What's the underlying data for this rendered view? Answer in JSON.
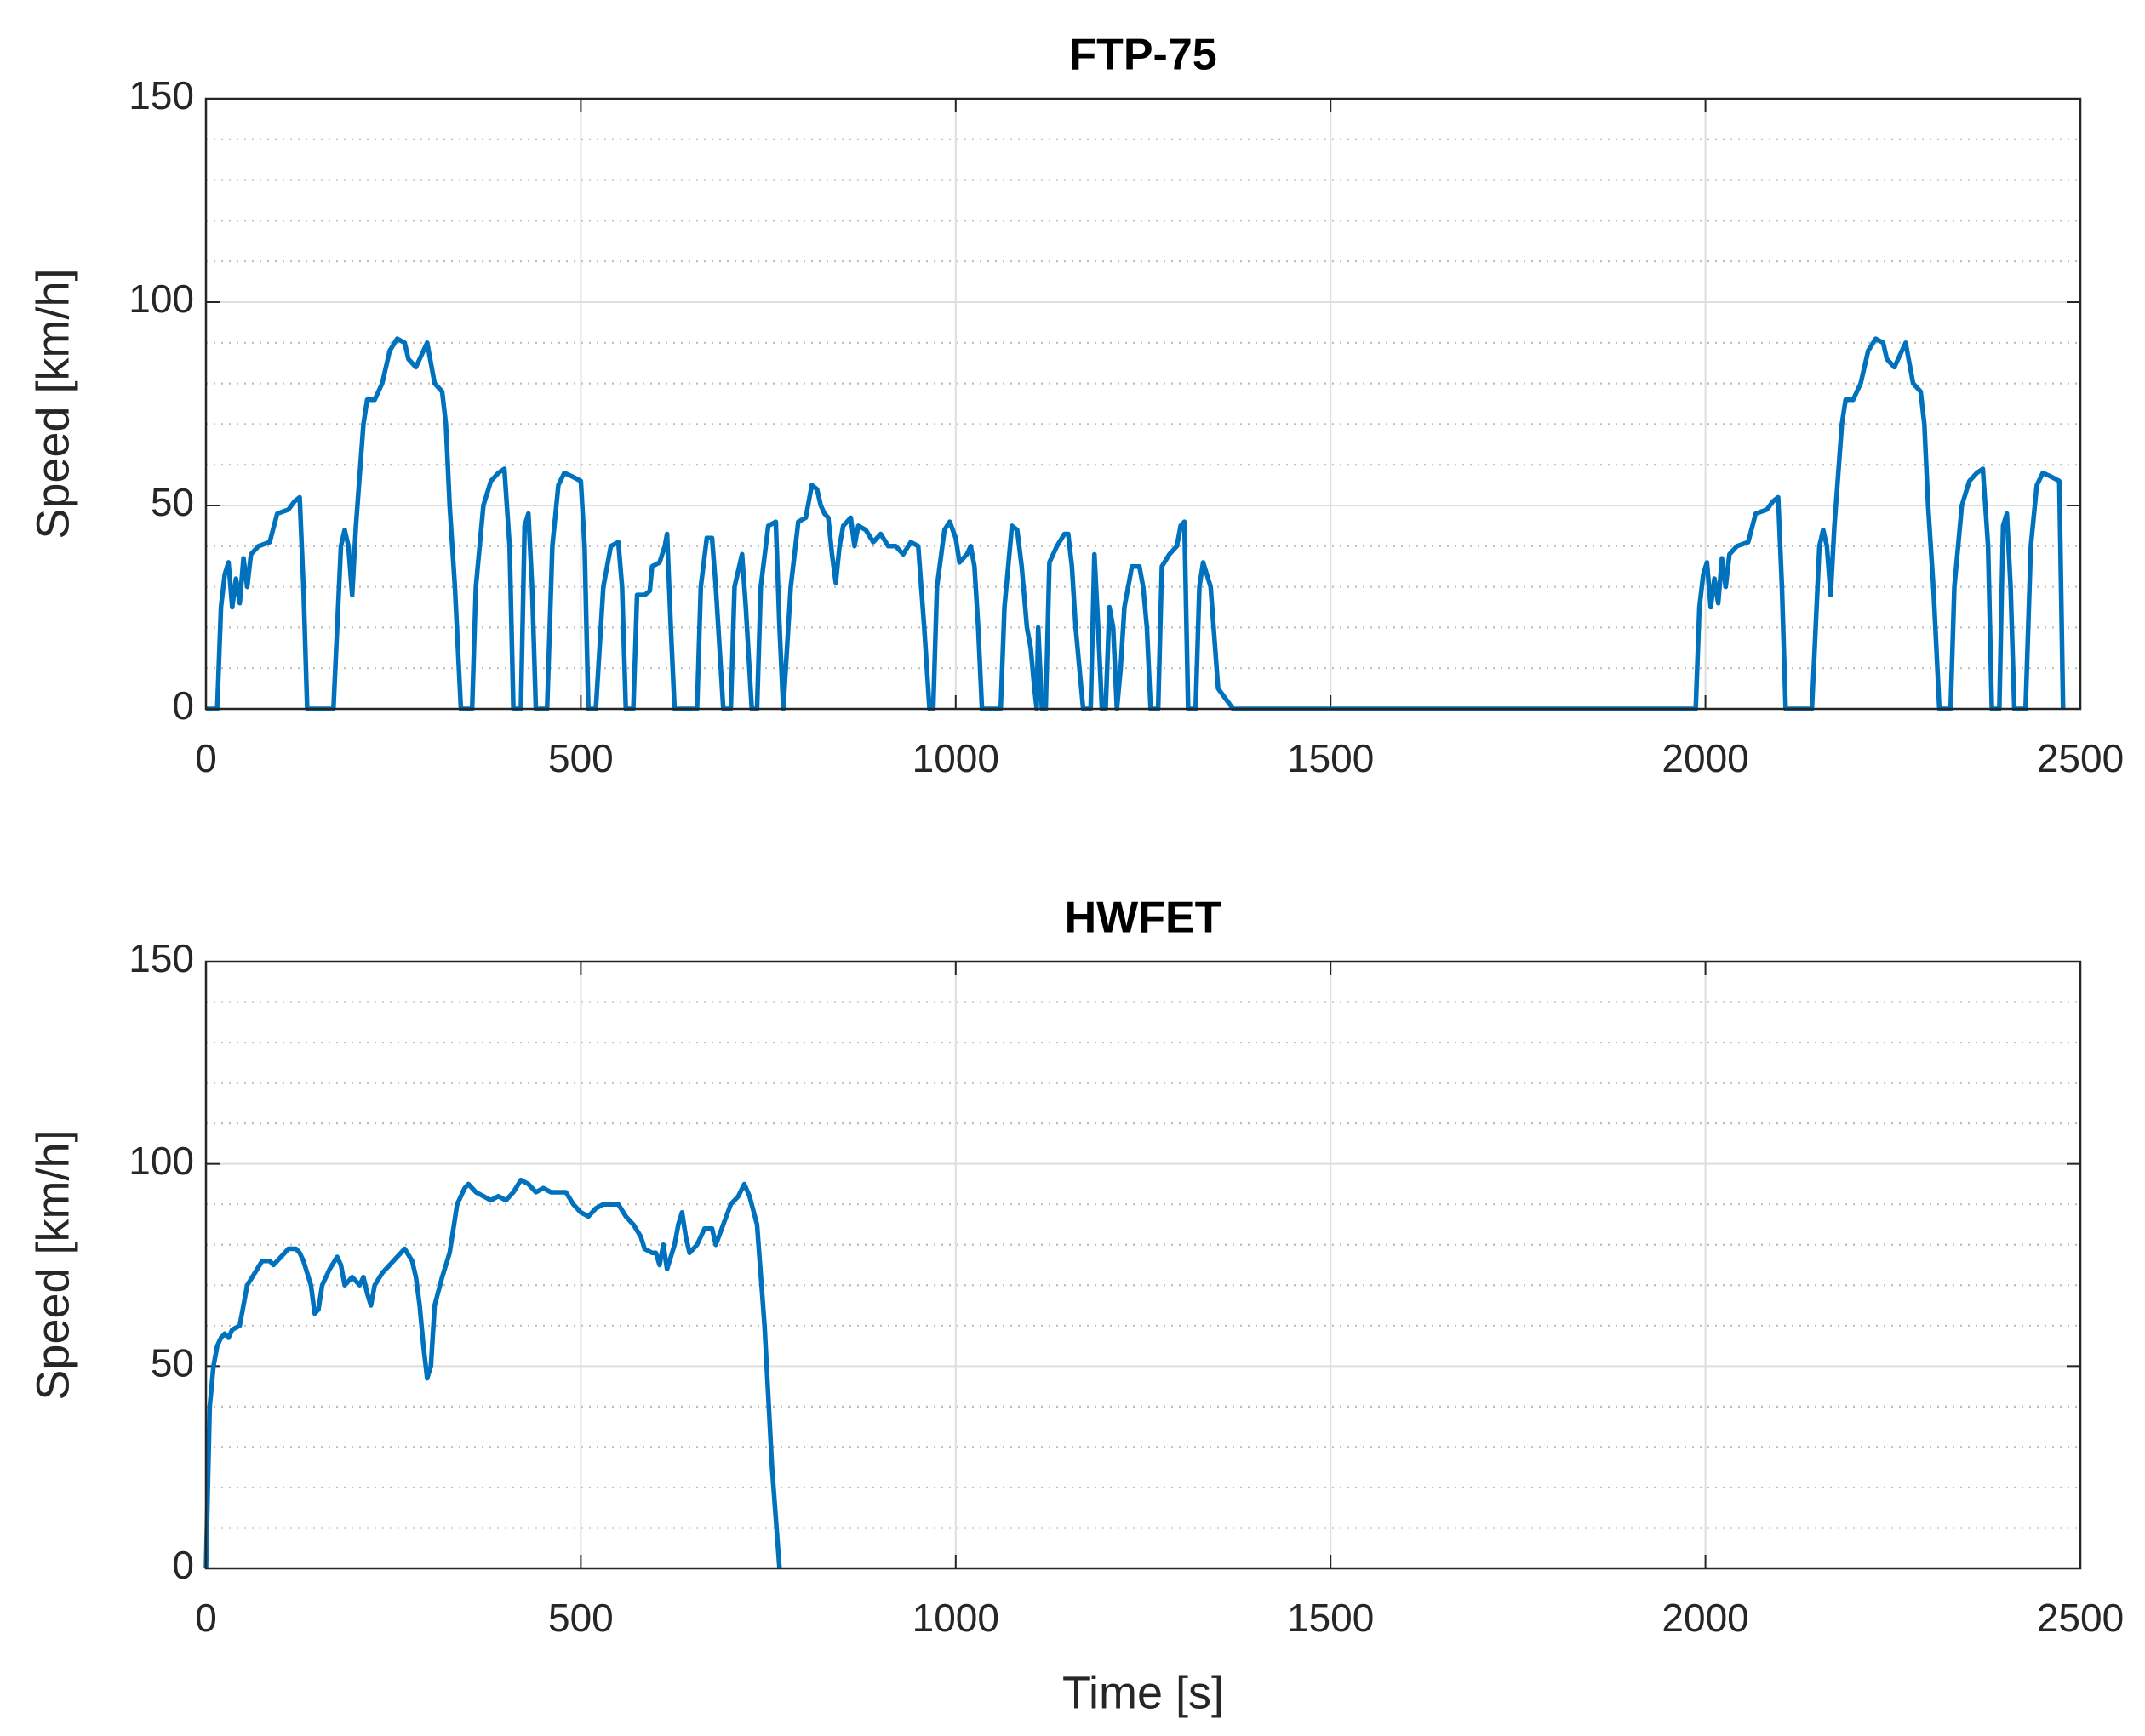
{
  "chart_data": [
    {
      "type": "line",
      "title": "FTP-75",
      "ylabel": "Speed [km/h]",
      "xlim": [
        0,
        2500
      ],
      "xticks": [
        0,
        500,
        1000,
        1500,
        2000,
        2500
      ],
      "ylim": [
        0,
        150
      ],
      "yticks": [
        0,
        50,
        100,
        150
      ],
      "yminor_ticks": [
        10,
        20,
        30,
        40,
        60,
        70,
        80,
        90,
        110,
        120,
        130,
        140
      ],
      "grid": true,
      "minor_grid": true,
      "series": [
        {
          "name": "FTP-75",
          "color": "#0072bd",
          "x": [
            0,
            15,
            20,
            25,
            30,
            35,
            40,
            45,
            50,
            55,
            60,
            70,
            85,
            95,
            110,
            118,
            125,
            130,
            135,
            170,
            180,
            185,
            190,
            195,
            200,
            210,
            215,
            225,
            235,
            245,
            255,
            265,
            270,
            280,
            290,
            295,
            300,
            305,
            315,
            320,
            325,
            332,
            340,
            355,
            360,
            370,
            380,
            390,
            398,
            405,
            410,
            420,
            425,
            430,
            435,
            440,
            455,
            462,
            470,
            478,
            490,
            500,
            505,
            510,
            520,
            530,
            540,
            550,
            555,
            560,
            570,
            575,
            585,
            592,
            595,
            605,
            612,
            615,
            620,
            625,
            655,
            660,
            668,
            675,
            680,
            690,
            700,
            705,
            715,
            720,
            728,
            735,
            740,
            750,
            760,
            765,
            770,
            780,
            790,
            800,
            808,
            815,
            820,
            825,
            830,
            835,
            840,
            845,
            850,
            860,
            865,
            870,
            880,
            890,
            900,
            910,
            920,
            930,
            940,
            950,
            958,
            965,
            970,
            975,
            985,
            992,
            1000,
            1005,
            1015,
            1020,
            1025,
            1030,
            1035,
            1060,
            1065,
            1075,
            1082,
            1088,
            1095,
            1100,
            1105,
            1108,
            1110,
            1115,
            1120,
            1125,
            1135,
            1145,
            1150,
            1155,
            1160,
            1165,
            1170,
            1180,
            1185,
            1190,
            1195,
            1200,
            1205,
            1210,
            1215,
            1220,
            1225,
            1235,
            1245,
            1250,
            1255,
            1260,
            1270,
            1275,
            1285,
            1295,
            1300,
            1305,
            1310,
            1320,
            1325,
            1330,
            1340,
            1350,
            1370,
            1987,
            1992,
            1997,
            2002,
            2007,
            2012,
            2017,
            2022,
            2027,
            2032,
            2042,
            2057,
            2067,
            2082,
            2090,
            2097,
            2102,
            2107,
            2142,
            2152,
            2157,
            2162,
            2167,
            2172,
            2182,
            2187,
            2197,
            2207,
            2217,
            2227,
            2237,
            2242,
            2252,
            2262,
            2267,
            2272,
            2277,
            2287,
            2292,
            2297,
            2304,
            2312,
            2327,
            2332,
            2342,
            2352,
            2362,
            2370,
            2377,
            2382,
            2392,
            2397,
            2402,
            2407,
            2412,
            2427,
            2434,
            2442,
            2450,
            2462,
            2472,
            2477
          ],
          "values": [
            0,
            0,
            25,
            33,
            36,
            25,
            32,
            26,
            37,
            30,
            38,
            40,
            41,
            48,
            49,
            51,
            52,
            30,
            0,
            0,
            40,
            44,
            40,
            28,
            45,
            70,
            76,
            76,
            80,
            88,
            91,
            90,
            86,
            84,
            88,
            90,
            85,
            80,
            78,
            70,
            50,
            30,
            0,
            0,
            30,
            50,
            56,
            58,
            59,
            40,
            0,
            0,
            45,
            48,
            30,
            0,
            0,
            40,
            55,
            58,
            57,
            56,
            40,
            0,
            0,
            30,
            40,
            41,
            30,
            0,
            0,
            28,
            28,
            29,
            35,
            36,
            40,
            43,
            20,
            0,
            0,
            30,
            42,
            42,
            30,
            0,
            0,
            30,
            38,
            25,
            0,
            0,
            30,
            45,
            46,
            20,
            0,
            30,
            46,
            47,
            55,
            54,
            50,
            48,
            47,
            38,
            31,
            40,
            45,
            47,
            40,
            45,
            44,
            41,
            43,
            40,
            40,
            38,
            41,
            40,
            20,
            0,
            0,
            30,
            44,
            46,
            42,
            36,
            38,
            40,
            35,
            20,
            0,
            0,
            25,
            45,
            44,
            35,
            20,
            15,
            5,
            0,
            20,
            0,
            0,
            36,
            40,
            43,
            43,
            35,
            20,
            10,
            0,
            0,
            38,
            20,
            0,
            0,
            25,
            20,
            0,
            10,
            25,
            35,
            35,
            30,
            20,
            0,
            0,
            35,
            38,
            40,
            45,
            46,
            0,
            0,
            30,
            36,
            30,
            5,
            0,
            0,
            25,
            33,
            36,
            25,
            32,
            26,
            37,
            30,
            38,
            40,
            41,
            48,
            49,
            51,
            52,
            30,
            0,
            0,
            40,
            44,
            40,
            28,
            45,
            70,
            76,
            76,
            80,
            88,
            91,
            90,
            86,
            84,
            88,
            90,
            85,
            80,
            78,
            70,
            50,
            30,
            0,
            0,
            30,
            50,
            56,
            58,
            59,
            40,
            0,
            0,
            45,
            48,
            30,
            0,
            0,
            40,
            55,
            58,
            57,
            56,
            0
          ]
        }
      ]
    },
    {
      "type": "line",
      "title": "HWFET",
      "ylabel": "Speed [km/h]",
      "xlabel": "Time [s]",
      "xlim": [
        0,
        2500
      ],
      "xticks": [
        0,
        500,
        1000,
        1500,
        2000,
        2500
      ],
      "ylim": [
        0,
        150
      ],
      "yticks": [
        0,
        50,
        100,
        150
      ],
      "yminor_ticks": [
        10,
        20,
        30,
        40,
        60,
        70,
        80,
        90,
        110,
        120,
        130,
        140
      ],
      "grid": true,
      "minor_grid": true,
      "series": [
        {
          "name": "HWFET",
          "color": "#0072bd",
          "x": [
            0,
            5,
            10,
            15,
            20,
            25,
            30,
            35,
            45,
            50,
            55,
            65,
            75,
            85,
            90,
            100,
            110,
            120,
            125,
            130,
            135,
            140,
            145,
            150,
            155,
            165,
            175,
            180,
            185,
            195,
            205,
            210,
            215,
            220,
            225,
            235,
            245,
            255,
            265,
            275,
            280,
            285,
            290,
            295,
            300,
            305,
            315,
            325,
            335,
            345,
            350,
            360,
            370,
            380,
            390,
            400,
            410,
            420,
            430,
            440,
            450,
            460,
            470,
            480,
            490,
            500,
            510,
            520,
            530,
            540,
            550,
            560,
            570,
            580,
            585,
            595,
            600,
            605,
            610,
            615,
            625,
            630,
            635,
            640,
            645,
            655,
            665,
            675,
            680,
            690,
            700,
            710,
            718,
            725,
            735,
            745,
            755,
            765
          ],
          "values": [
            0,
            40,
            50,
            55,
            57,
            58,
            57,
            59,
            60,
            65,
            70,
            73,
            76,
            76,
            75,
            77,
            79,
            79,
            78,
            76,
            73,
            70,
            63,
            64,
            70,
            74,
            77,
            75,
            70,
            72,
            70,
            72,
            68,
            65,
            70,
            73,
            75,
            77,
            79,
            76,
            72,
            65,
            55,
            47,
            50,
            65,
            72,
            78,
            90,
            94,
            95,
            93,
            92,
            91,
            92,
            91,
            93,
            96,
            95,
            93,
            94,
            93,
            93,
            93,
            90,
            88,
            87,
            89,
            90,
            90,
            90,
            87,
            85,
            82,
            79,
            78,
            78,
            75,
            80,
            74,
            80,
            85,
            88,
            82,
            78,
            80,
            84,
            84,
            80,
            85,
            90,
            92,
            95,
            92,
            85,
            60,
            25,
            0
          ]
        }
      ]
    }
  ]
}
